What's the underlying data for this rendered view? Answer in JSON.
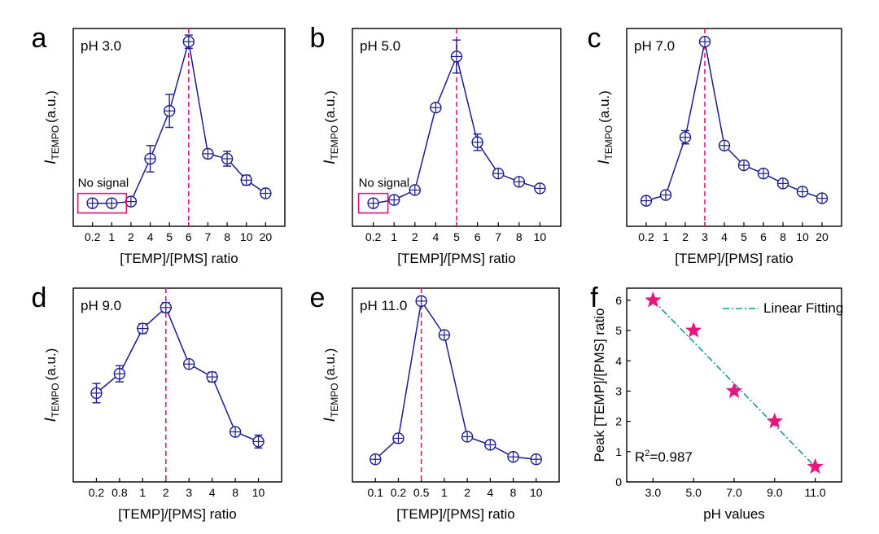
{
  "colors": {
    "series": "#1c1c8c",
    "dashed": "#e0157a",
    "star": "#e8157c",
    "fit": "#179a96",
    "box": "#e0157a"
  },
  "chart_data": [
    {
      "type": "line",
      "panel_label": "a",
      "annotation": "pH 3.0",
      "xlabel": "[TEMP]/[PMS] ratio",
      "ylabel_main": "I",
      "ylabel_sub": "TEMPO",
      "ylabel_unit": "(a.u.)",
      "categories": [
        "0.2",
        "1",
        "2",
        "4",
        "5",
        "6",
        "7",
        "8",
        "10",
        "20"
      ],
      "values": [
        0.02,
        0.02,
        0.03,
        0.29,
        0.58,
        1.0,
        0.32,
        0.29,
        0.16,
        0.08
      ],
      "errors": [
        0.015,
        0.015,
        0.025,
        0.08,
        0.1,
        0.04,
        0.025,
        0.045,
        0.03,
        0.02
      ],
      "ylim": [
        -0.12,
        1.08
      ],
      "peak_category": "6",
      "no_signal_label": "No signal",
      "no_signal_count": 2
    },
    {
      "type": "line",
      "panel_label": "b",
      "annotation": "pH 5.0",
      "xlabel": "[TEMP]/[PMS] ratio",
      "ylabel_main": "I",
      "ylabel_sub": "TEMPO",
      "ylabel_unit": "(a.u.)",
      "categories": [
        "0.2",
        "1",
        "2",
        "4",
        "5",
        "6",
        "7",
        "8",
        "10"
      ],
      "values": [
        0.02,
        0.04,
        0.1,
        0.6,
        0.91,
        0.39,
        0.2,
        0.15,
        0.11
      ],
      "errors": [
        0.015,
        0.015,
        0.02,
        0.02,
        0.1,
        0.05,
        0.02,
        0.02,
        0.02
      ],
      "ylim": [
        -0.12,
        1.08
      ],
      "peak_category": "5",
      "no_signal_label": "No signal",
      "no_signal_count": 1
    },
    {
      "type": "line",
      "panel_label": "c",
      "annotation": "pH 7.0",
      "xlabel": "[TEMP]/[PMS] ratio",
      "ylabel_main": "I",
      "ylabel_sub": "TEMPO",
      "ylabel_unit": "(a.u.)",
      "categories": [
        "0.2",
        "1",
        "2",
        "3",
        "4",
        "5",
        "6",
        "8",
        "10",
        "20"
      ],
      "values": [
        0.035,
        0.07,
        0.42,
        1.0,
        0.37,
        0.25,
        0.2,
        0.14,
        0.09,
        0.05
      ],
      "errors": [
        0.02,
        0.02,
        0.04,
        0.02,
        0.02,
        0.02,
        0.02,
        0.02,
        0.02,
        0.02
      ],
      "ylim": [
        -0.12,
        1.08
      ],
      "peak_category": "3"
    },
    {
      "type": "line",
      "panel_label": "d",
      "annotation": "pH 9.0",
      "xlabel": "[TEMP]/[PMS] ratio",
      "ylabel_main": "I",
      "ylabel_sub": "TEMPO",
      "ylabel_unit": "(a.u.)",
      "categories": [
        "0.2",
        "0.8",
        "1",
        "2",
        "3",
        "4",
        "8",
        "10"
      ],
      "values": [
        0.43,
        0.55,
        0.83,
        0.96,
        0.61,
        0.53,
        0.19,
        0.13
      ],
      "errors": [
        0.06,
        0.05,
        0.03,
        0.03,
        0.02,
        0.03,
        0.02,
        0.04
      ],
      "ylim": [
        -0.12,
        1.08
      ],
      "peak_category": "2"
    },
    {
      "type": "line",
      "panel_label": "e",
      "annotation": "pH 11.0",
      "xlabel": "[TEMP]/[PMS] ratio",
      "ylabel_main": "I",
      "ylabel_sub": "TEMPO",
      "ylabel_unit": "(a.u.)",
      "categories": [
        "0.1",
        "0.2",
        "0.5",
        "1",
        "2",
        "4",
        "8",
        "10"
      ],
      "values": [
        0.02,
        0.15,
        1.0,
        0.79,
        0.16,
        0.11,
        0.035,
        0.02
      ],
      "errors": [
        0.015,
        0.02,
        0.02,
        0.02,
        0.02,
        0.02,
        0.015,
        0.015
      ],
      "ylim": [
        -0.12,
        1.08
      ],
      "peak_category": "0.5"
    },
    {
      "type": "scatter",
      "panel_label": "f",
      "xlabel": "pH values",
      "ylabel": "Peak [TEMP]/[PMS] ratio",
      "x": [
        3,
        5,
        7,
        9,
        11
      ],
      "y": [
        6,
        5,
        3,
        2,
        0.5
      ],
      "xticks": [
        "3.0",
        "5.0",
        "7.0",
        "9.0",
        "11.0"
      ],
      "yticks": [
        "0",
        "1",
        "2",
        "3",
        "4",
        "5",
        "6"
      ],
      "xlim": [
        1.7,
        12.3
      ],
      "ylim": [
        0,
        6.4
      ],
      "fit": {
        "label": "Linear Fitting",
        "x": [
          3,
          11
        ],
        "y": [
          6,
          0.5
        ]
      },
      "r2_base": "R",
      "r2_exp": "2",
      "r2_value": "=0.987"
    }
  ]
}
